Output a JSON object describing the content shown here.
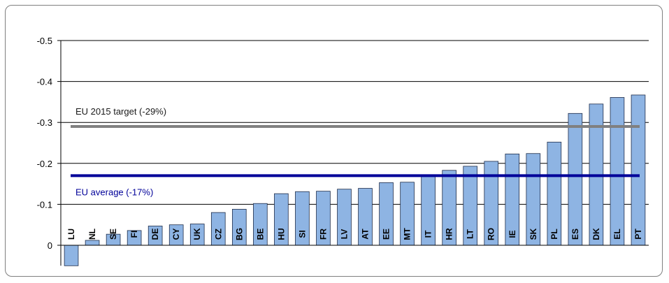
{
  "chart_data": {
    "type": "bar",
    "title": "",
    "xlabel": "",
    "ylabel": "",
    "ylim": [
      0.05,
      -0.5
    ],
    "y_reversed": true,
    "y_ticks": [
      "-0.5",
      "-0.4",
      "-0.3",
      "-0.2",
      "-0.1",
      "0"
    ],
    "y_tick_values": [
      -0.5,
      -0.4,
      -0.3,
      -0.2,
      -0.1,
      0
    ],
    "grid": true,
    "categories": [
      "LU",
      "NL",
      "SE",
      "FI",
      "DE",
      "CY",
      "UK",
      "CZ",
      "BG",
      "BE",
      "HU",
      "SI",
      "FR",
      "LV",
      "AT",
      "EE",
      "MT",
      "IT",
      "HR",
      "LT",
      "RO",
      "IE",
      "SK",
      "PL",
      "ES",
      "DK",
      "EL",
      "PT"
    ],
    "values": [
      0.05,
      -0.012,
      -0.027,
      -0.036,
      -0.047,
      -0.05,
      -0.052,
      -0.08,
      -0.088,
      -0.102,
      -0.126,
      -0.131,
      -0.132,
      -0.137,
      -0.139,
      -0.153,
      -0.154,
      -0.168,
      -0.183,
      -0.193,
      -0.205,
      -0.223,
      -0.224,
      -0.252,
      -0.322,
      -0.345,
      -0.361,
      -0.367
    ],
    "bar_color": "#8eb4e3",
    "bar_edge_color": "#1f2d4a",
    "reference_lines": [
      {
        "label": "EU 2015 target (-29%)",
        "value": -0.29,
        "color": "#808080",
        "label_color": "#1a1a1a"
      },
      {
        "label": "EU average (-17%)",
        "value": -0.17,
        "color": "#000099",
        "label_color": "#000099"
      }
    ]
  }
}
